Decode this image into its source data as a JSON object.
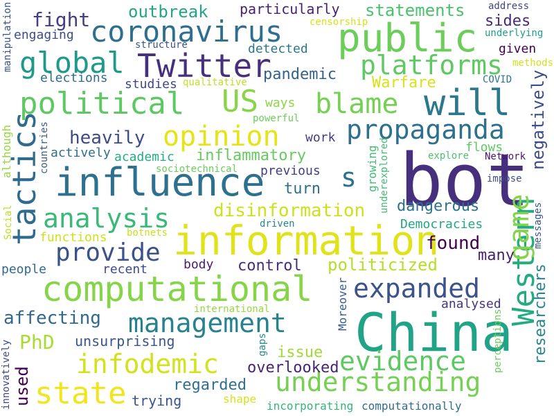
{
  "words": [
    {
      "text": "bot",
      "color": "#46307e",
      "vertical": false
    },
    {
      "text": "China",
      "color": "#20a386",
      "vertical": false
    },
    {
      "text": "information",
      "color": "#e0e319",
      "vertical": false
    },
    {
      "text": "influence",
      "color": "#2d718e",
      "vertical": false
    },
    {
      "text": "computational",
      "color": "#86d549",
      "vertical": false
    },
    {
      "text": "public",
      "color": "#6ccd5a",
      "vertical": false
    },
    {
      "text": "Twitter",
      "color": "#46307e",
      "vertical": false
    },
    {
      "text": "coronavirus",
      "color": "#2e6e8e",
      "vertical": false
    },
    {
      "text": "will",
      "color": "#2a788e",
      "vertical": false
    },
    {
      "text": "tactics",
      "color": "#2f6b8e",
      "vertical": true
    },
    {
      "text": "Western",
      "color": "#25ab82",
      "vertical": true
    },
    {
      "text": "game",
      "color": "#84d44b",
      "vertical": true
    },
    {
      "text": "political",
      "color": "#5ec962",
      "vertical": false
    },
    {
      "text": "propaganda",
      "color": "#2d708e",
      "vertical": false
    },
    {
      "text": "global",
      "color": "#1f9a8a",
      "vertical": false
    },
    {
      "text": "opinion",
      "color": "#e5e419",
      "vertical": false
    },
    {
      "text": "blame",
      "color": "#75d054",
      "vertical": false
    },
    {
      "text": "US",
      "color": "#89d548",
      "vertical": false
    },
    {
      "text": "platforms",
      "color": "#5ec962",
      "vertical": false
    },
    {
      "text": "state",
      "color": "#f1e51d",
      "vertical": false
    },
    {
      "text": "management",
      "color": "#26828e",
      "vertical": false
    },
    {
      "text": "understanding",
      "color": "#75d054",
      "vertical": false
    },
    {
      "text": "infodemic",
      "color": "#d2e21b",
      "vertical": false
    },
    {
      "text": "expanded",
      "color": "#3b528b",
      "vertical": false
    },
    {
      "text": "evidence",
      "color": "#5ec962",
      "vertical": false
    },
    {
      "text": "analysis",
      "color": "#38b977",
      "vertical": false
    },
    {
      "text": "provide",
      "color": "#3b528b",
      "vertical": false
    },
    {
      "text": "inflammatory",
      "color": "#65cb5e",
      "vertical": false
    },
    {
      "text": "disinformation",
      "color": "#cde11d",
      "vertical": false
    },
    {
      "text": "researchers",
      "color": "#25848e",
      "vertical": true
    },
    {
      "text": "negatively",
      "color": "#3e4c8a",
      "vertical": true
    },
    {
      "text": "politicized",
      "color": "#b5de2b",
      "vertical": false
    },
    {
      "text": "s",
      "color": "#2c728e",
      "vertical": false
    },
    {
      "text": "PhD",
      "color": "#a8db34",
      "vertical": false
    },
    {
      "text": "outbreak",
      "color": "#22a785",
      "vertical": false
    },
    {
      "text": "particularly",
      "color": "#482173",
      "vertical": false
    },
    {
      "text": "statements",
      "color": "#4ac16d",
      "vertical": false
    },
    {
      "text": "fight",
      "color": "#433e85",
      "vertical": false
    },
    {
      "text": "pandemic",
      "color": "#33638d",
      "vertical": false
    },
    {
      "text": "Warfare",
      "color": "#d8e219",
      "vertical": false
    },
    {
      "text": "sides",
      "color": "#482878",
      "vertical": false
    },
    {
      "text": "heavily",
      "color": "#3e4a89",
      "vertical": false
    },
    {
      "text": "dangerous",
      "color": "#2c728e",
      "vertical": false
    },
    {
      "text": "turn",
      "color": "#2d708e",
      "vertical": false
    },
    {
      "text": "found",
      "color": "#440154",
      "vertical": false
    },
    {
      "text": "affecting",
      "color": "#31688e",
      "vertical": false
    },
    {
      "text": "regarded",
      "color": "#2d708e",
      "vertical": false
    },
    {
      "text": "used",
      "color": "#440154",
      "vertical": true
    },
    {
      "text": "issue",
      "color": "#a0da39",
      "vertical": false
    },
    {
      "text": "control",
      "color": "#472d7b",
      "vertical": false
    },
    {
      "text": "many",
      "color": "#481f70",
      "vertical": false
    },
    {
      "text": "unsurprising",
      "color": "#3a548c",
      "vertical": false
    },
    {
      "text": "overlooked",
      "color": "#482475",
      "vertical": false
    },
    {
      "text": "trying",
      "color": "#39568c",
      "vertical": false
    },
    {
      "text": "shape",
      "color": "#d8e219",
      "vertical": false
    },
    {
      "text": "incorporating",
      "color": "#32b67a",
      "vertical": false
    },
    {
      "text": "computationally",
      "color": "#2e6e8e",
      "vertical": false
    },
    {
      "text": "analysed",
      "color": "#463480",
      "vertical": false
    },
    {
      "text": "Moreover",
      "color": "#365c8d",
      "vertical": true
    },
    {
      "text": "engaging",
      "color": "#3e4c8a",
      "vertical": false
    },
    {
      "text": "elections",
      "color": "#2f6c8e",
      "vertical": false
    },
    {
      "text": "studies",
      "color": "#3f4788",
      "vertical": false
    },
    {
      "text": "detected",
      "color": "#2a788e",
      "vertical": false
    },
    {
      "text": "structure",
      "color": "#3b518b",
      "vertical": false
    },
    {
      "text": "qualitative",
      "color": "#c2df23",
      "vertical": false
    },
    {
      "text": "academic",
      "color": "#25ac82",
      "vertical": false
    },
    {
      "text": "ways",
      "color": "#8bd646",
      "vertical": false
    },
    {
      "text": "powerful",
      "color": "#6ccd5a",
      "vertical": false
    },
    {
      "text": "work",
      "color": "#443a83",
      "vertical": false
    },
    {
      "text": "actively",
      "color": "#2d708e",
      "vertical": false
    },
    {
      "text": "sociotechnical",
      "color": "#6ccd5a",
      "vertical": false
    },
    {
      "text": "previous",
      "color": "#433e85",
      "vertical": false
    },
    {
      "text": "flows",
      "color": "#5ec962",
      "vertical": false
    },
    {
      "text": "explore",
      "color": "#4ac16d",
      "vertical": false
    },
    {
      "text": "Network",
      "color": "#481668",
      "vertical": false
    },
    {
      "text": "impose",
      "color": "#3e4c8a",
      "vertical": false
    },
    {
      "text": "growing",
      "color": "#3dbc74",
      "vertical": true
    },
    {
      "text": "underexplored",
      "color": "#3dbc74",
      "vertical": true
    },
    {
      "text": "Democracies",
      "color": "#22a785",
      "vertical": false
    },
    {
      "text": "messages",
      "color": "#3a538b",
      "vertical": true
    },
    {
      "text": "driven",
      "color": "#24878e",
      "vertical": false
    },
    {
      "text": "functions",
      "color": "#d0e11c",
      "vertical": false
    },
    {
      "text": "botnets",
      "color": "#c8e020",
      "vertical": false
    },
    {
      "text": "people",
      "color": "#31688e",
      "vertical": false
    },
    {
      "text": "recent",
      "color": "#3e4a89",
      "vertical": false
    },
    {
      "text": "body",
      "color": "#481c6e",
      "vertical": false
    },
    {
      "text": "international",
      "color": "#95d840",
      "vertical": false
    },
    {
      "text": "gaps",
      "color": "#228c8d",
      "vertical": true
    },
    {
      "text": "innovatively",
      "color": "#3e4989",
      "vertical": true
    },
    {
      "text": "perceptions",
      "color": "#6ccd5a",
      "vertical": true
    },
    {
      "text": "address",
      "color": "#414487",
      "vertical": false
    },
    {
      "text": "censorship",
      "color": "#d8e219",
      "vertical": false
    },
    {
      "text": "underlying",
      "color": "#1f9e89",
      "vertical": false
    },
    {
      "text": "given",
      "color": "#440154",
      "vertical": false
    },
    {
      "text": "methods",
      "color": "#d2e21b",
      "vertical": false
    },
    {
      "text": "COVID",
      "color": "#2a788e",
      "vertical": false
    },
    {
      "text": "manipulation",
      "color": "#3b528b",
      "vertical": true
    },
    {
      "text": "although",
      "color": "#95d840",
      "vertical": true
    },
    {
      "text": "countries",
      "color": "#375a8c",
      "vertical": true
    },
    {
      "text": "Social",
      "color": "#bddf26",
      "vertical": true
    }
  ]
}
